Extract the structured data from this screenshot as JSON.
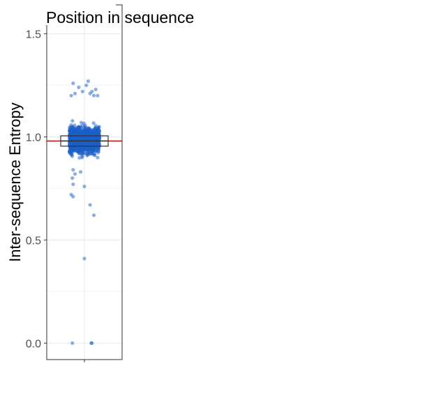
{
  "chart_data": {
    "type": "scatter",
    "subtype": "jittered strip plot with boxplot",
    "title": "Position in sequence",
    "xlabel": "",
    "ylabel": "Inter-sequence Entropy",
    "ylim": [
      -0.08,
      1.64
    ],
    "yticks": [
      0.0,
      0.5,
      1.0,
      1.5
    ],
    "ytick_labels": [
      "0.0",
      "0.5",
      "1.0",
      "1.5"
    ],
    "grid": true,
    "point_color": "#1a5fc7",
    "reference_line": {
      "y": 0.98,
      "color": "#cc0000"
    },
    "boxplot": {
      "q1": 0.955,
      "median": 0.98,
      "q3": 1.005
    },
    "series": [
      {
        "name": "",
        "x_jitter_range": [
          -0.4,
          0.4
        ],
        "core_band": [
          0.85,
          1.12
        ],
        "outlier_values": [
          1.27,
          1.26,
          1.25,
          1.24,
          1.23,
          1.22,
          1.22,
          1.21,
          1.21,
          1.2,
          1.2,
          1.2,
          0.84,
          0.83,
          0.82,
          0.8,
          0.77,
          0.76,
          0.72,
          0.71,
          0.67,
          0.62,
          0.41,
          0.0,
          0.0,
          0.0
        ]
      }
    ]
  }
}
